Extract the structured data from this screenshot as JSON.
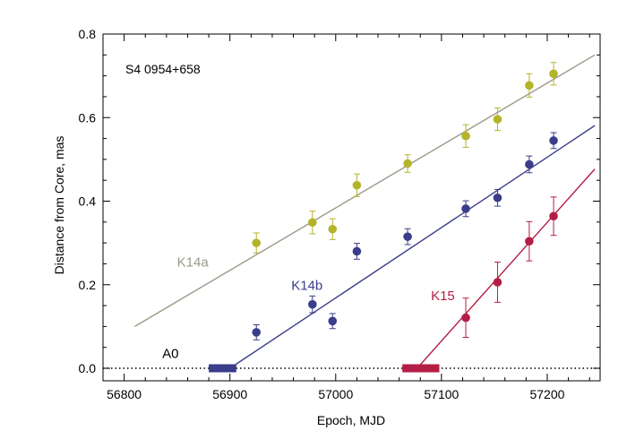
{
  "chart_data": {
    "type": "scatter",
    "title": "",
    "annotation": "S4 0954+658",
    "xlabel": "Epoch, MJD",
    "ylabel": "Distance from Core, mas",
    "xlim": [
      56780,
      57250
    ],
    "ylim": [
      -0.03,
      0.8
    ],
    "xticks": [
      56800,
      56900,
      57000,
      57100,
      57200
    ],
    "yticks": [
      0.0,
      0.2,
      0.4,
      0.6,
      0.8
    ],
    "xtick_labels": [
      "56800",
      "56900",
      "57000",
      "57100",
      "57200"
    ],
    "ytick_labels": [
      "0.0",
      "0.2",
      "0.4",
      "0.6",
      "0.8"
    ],
    "grid": false,
    "reference_line": {
      "label": "A0",
      "y": 0.0,
      "style": "dotted",
      "color": "#000000"
    },
    "series": [
      {
        "name": "K14a",
        "color": "#b5b32a",
        "fit_color": "#9a9a8a",
        "x": [
          56925,
          56978,
          56997,
          57020,
          57068,
          57123,
          57153,
          57183,
          57206
        ],
        "y": [
          0.3,
          0.349,
          0.333,
          0.438,
          0.49,
          0.556,
          0.596,
          0.677,
          0.705
        ],
        "err": [
          0.024,
          0.027,
          0.025,
          0.027,
          0.021,
          0.027,
          0.027,
          0.028,
          0.027
        ],
        "fit": {
          "x": [
            56810,
            57245
          ],
          "y": [
            0.1,
            0.75
          ]
        }
      },
      {
        "name": "K14b",
        "color": "#3a3d8a",
        "fit_color": "#3a3d8a",
        "x": [
          56925,
          56978,
          56997,
          57020,
          57068,
          57123,
          57153,
          57183,
          57206
        ],
        "y": [
          0.086,
          0.153,
          0.113,
          0.28,
          0.315,
          0.382,
          0.408,
          0.488,
          0.545
        ],
        "err": [
          0.018,
          0.02,
          0.018,
          0.019,
          0.019,
          0.019,
          0.02,
          0.02,
          0.019
        ],
        "fit": {
          "x": [
            56900,
            57245
          ],
          "y": [
            0.0,
            0.581
          ]
        },
        "ejection": {
          "x_start": 56880,
          "x_end": 56906
        }
      },
      {
        "name": "K15",
        "color": "#b41e45",
        "fit_color": "#b41e45",
        "x": [
          57123,
          57153,
          57183,
          57206
        ],
        "y": [
          0.121,
          0.206,
          0.304,
          0.364
        ],
        "err": [
          0.047,
          0.048,
          0.047,
          0.046
        ],
        "fit": {
          "x": [
            57077,
            57245
          ],
          "y": [
            0.0,
            0.477
          ]
        },
        "ejection": {
          "x_start": 57063,
          "x_end": 57098
        }
      }
    ],
    "labels": [
      {
        "text": "K14a",
        "x": 56850,
        "y": 0.243,
        "color": "#9a9a8a"
      },
      {
        "text": "K14b",
        "x": 56958,
        "y": 0.188,
        "color": "#3a3d8a"
      },
      {
        "text": "K15",
        "x": 57090,
        "y": 0.163,
        "color": "#b41e45"
      },
      {
        "text": "A0",
        "x": 56836,
        "y": 0.025,
        "color": "#000000"
      }
    ]
  }
}
